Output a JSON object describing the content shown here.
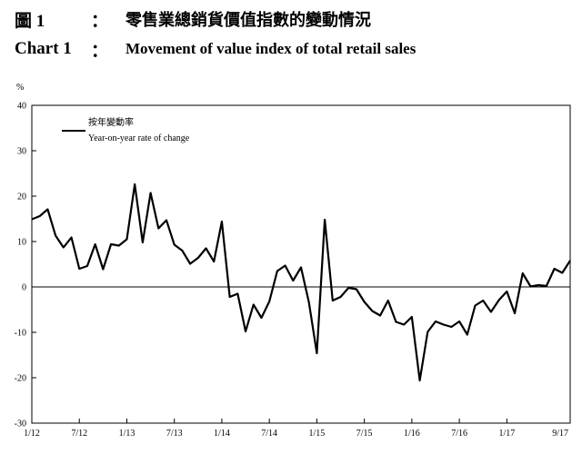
{
  "header": {
    "zh_number": "圖 1",
    "zh_colon": "：",
    "zh_title": "零售業總銷貨價值指數的變動情況",
    "en_number": "Chart 1",
    "en_colon": "：",
    "en_title": "Movement of value index of total retail sales"
  },
  "chart_data": {
    "type": "line",
    "title": "Movement of value index of total retail sales",
    "ylabel": "%",
    "xlabel": "",
    "ylim": [
      -30,
      40
    ],
    "yticks": [
      40,
      30,
      20,
      10,
      0,
      -10,
      -20,
      -30
    ],
    "grid": false,
    "legend_position": "top-left",
    "x_tick_labels": [
      "1/12",
      "7/12",
      "1/13",
      "7/13",
      "1/14",
      "7/14",
      "1/15",
      "7/15",
      "1/16",
      "7/16",
      "1/17",
      "9/17"
    ],
    "series": [
      {
        "name_zh": "按年變動率",
        "name": "Year-on-year rate of change",
        "color": "#000000",
        "x": [
          "1/12",
          "2/12",
          "3/12",
          "4/12",
          "5/12",
          "6/12",
          "7/12",
          "8/12",
          "9/12",
          "10/12",
          "11/12",
          "12/12",
          "1/13",
          "2/13",
          "3/13",
          "4/13",
          "5/13",
          "6/13",
          "7/13",
          "8/13",
          "9/13",
          "10/13",
          "11/13",
          "12/13",
          "1/14",
          "2/14",
          "3/14",
          "4/14",
          "5/14",
          "6/14",
          "7/14",
          "8/14",
          "9/14",
          "10/14",
          "11/14",
          "12/14",
          "1/15",
          "2/15",
          "3/15",
          "4/15",
          "5/15",
          "6/15",
          "7/15",
          "8/15",
          "9/15",
          "10/15",
          "11/15",
          "12/15",
          "1/16",
          "2/16",
          "3/16",
          "4/16",
          "5/16",
          "6/16",
          "7/16",
          "8/16",
          "9/16",
          "10/16",
          "11/16",
          "12/16",
          "1/17",
          "2/17",
          "3/17",
          "4/17",
          "5/17",
          "6/17",
          "7/17",
          "8/17",
          "9/17"
        ],
        "values": [
          14.9,
          15.6,
          17.1,
          11.3,
          8.7,
          10.9,
          4.0,
          4.6,
          9.4,
          3.9,
          9.4,
          9.1,
          10.5,
          22.6,
          9.8,
          20.7,
          12.9,
          14.7,
          9.3,
          8.0,
          5.1,
          6.4,
          8.5,
          5.6,
          14.4,
          -2.2,
          -1.5,
          -9.8,
          -3.9,
          -6.8,
          -3.2,
          3.5,
          4.7,
          1.4,
          4.3,
          -3.4,
          -14.6,
          14.8,
          -3.0,
          -2.2,
          -0.2,
          -0.5,
          -3.3,
          -5.3,
          -6.3,
          -3.0,
          -7.7,
          -8.3,
          -6.6,
          -20.6,
          -9.9,
          -7.6,
          -8.3,
          -8.8,
          -7.6,
          -10.5,
          -4.1,
          -3.0,
          -5.5,
          -2.9,
          -1.0,
          -5.8,
          3.0,
          0.1,
          0.4,
          0.2,
          4.0,
          3.1,
          5.8
        ]
      }
    ]
  }
}
